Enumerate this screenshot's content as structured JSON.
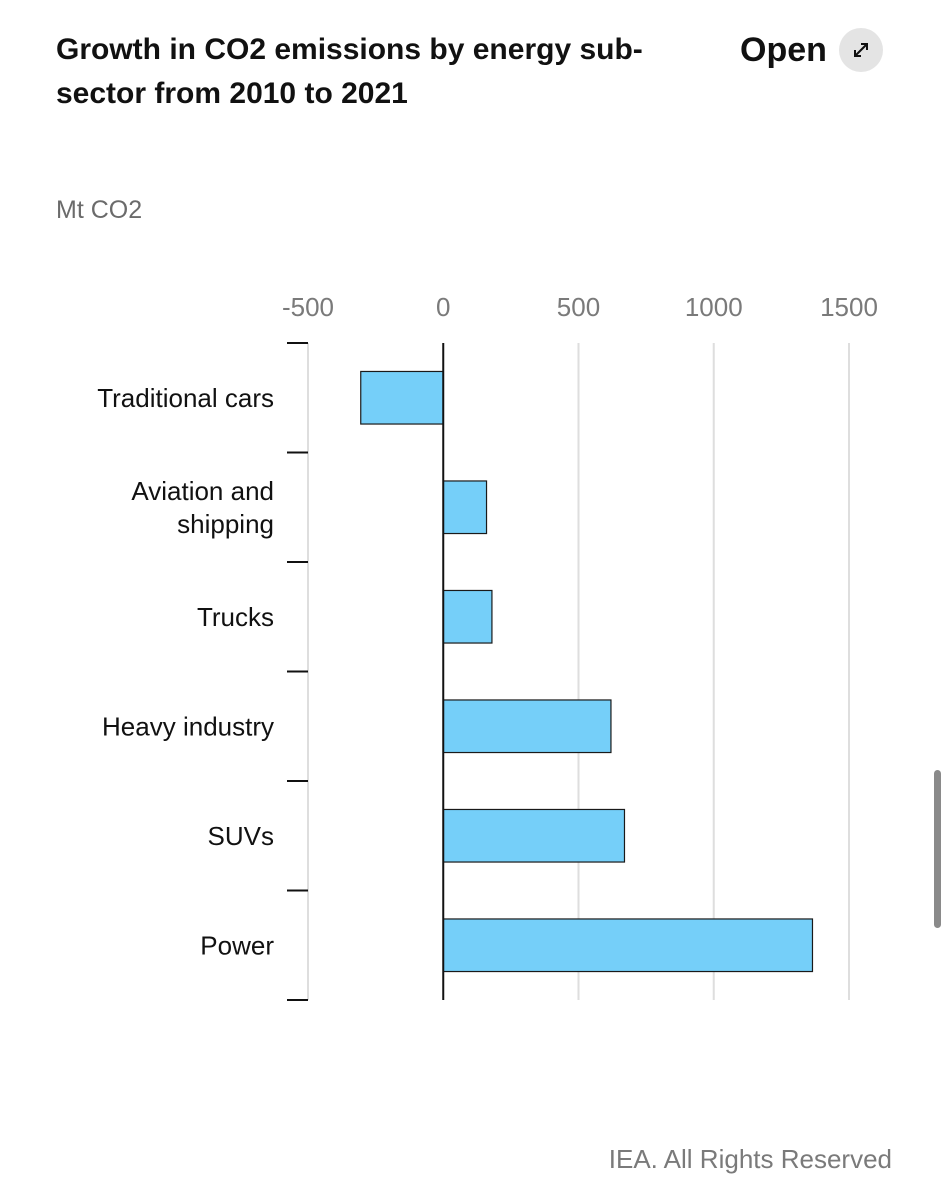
{
  "header": {
    "title": "Growth in CO2 emissions by energy sub-sector from 2010 to 2021",
    "open_label": "Open",
    "open_icon": "expand-arrows-icon"
  },
  "footer": {
    "credit": "IEA. All Rights Reserved"
  },
  "chart_data": {
    "type": "bar",
    "orientation": "horizontal",
    "title": "Growth in CO2 emissions by energy sub-sector from 2010 to 2021",
    "unit": "Mt CO2",
    "categories": [
      "Traditional cars",
      "Aviation and shipping",
      "Trucks",
      "Heavy industry",
      "SUVs",
      "Power"
    ],
    "category_lines": [
      [
        "Traditional cars"
      ],
      [
        "Aviation and",
        "shipping"
      ],
      [
        "Trucks"
      ],
      [
        "Heavy industry"
      ],
      [
        "SUVs"
      ],
      [
        "Power"
      ]
    ],
    "values": [
      -305,
      160,
      180,
      620,
      670,
      1365
    ],
    "xlim": [
      -500,
      1500
    ],
    "ticks": [
      -500,
      0,
      500,
      1000,
      1500
    ],
    "tick_labels": [
      "-500",
      "0",
      "500",
      "1000",
      "1500"
    ],
    "grid": true,
    "legend": "none",
    "bar_color": "#75cff9",
    "bar_stroke": "#1a1a1a"
  }
}
